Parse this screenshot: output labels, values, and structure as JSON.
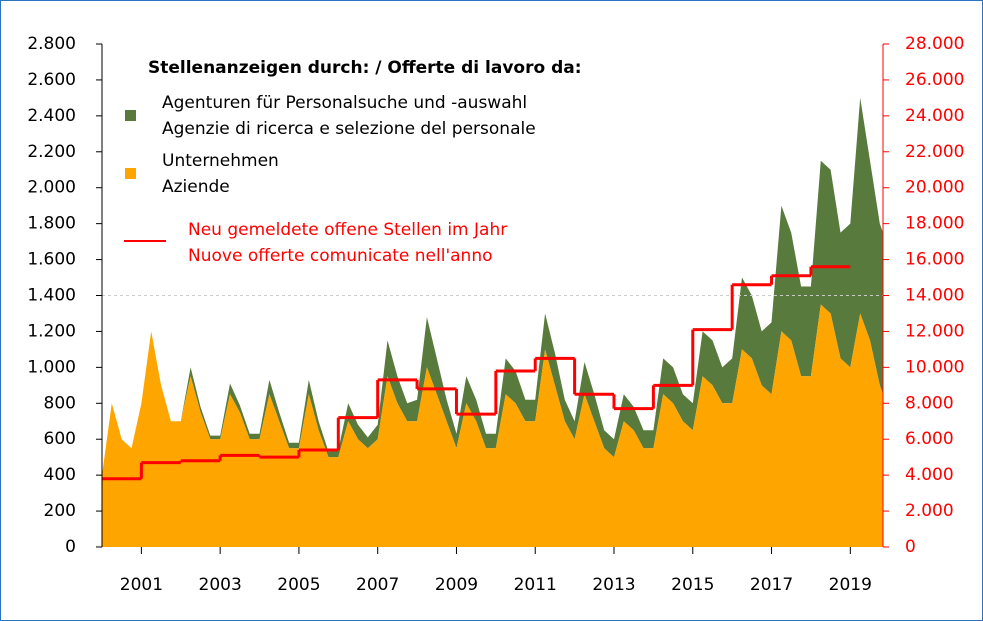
{
  "chart_data": {
    "type": "stacked_area",
    "legend_title": "Stellenanzeigen durch: / Offerte di lavoro da:",
    "x": [
      2000,
      2000.25,
      2000.5,
      2000.75,
      2001,
      2001.25,
      2001.5,
      2001.75,
      2002,
      2002.25,
      2002.5,
      2002.75,
      2003,
      2003.25,
      2003.5,
      2003.75,
      2004,
      2004.25,
      2004.5,
      2004.75,
      2005,
      2005.25,
      2005.5,
      2005.75,
      2006,
      2006.25,
      2006.5,
      2006.75,
      2007,
      2007.25,
      2007.5,
      2007.75,
      2008,
      2008.25,
      2008.5,
      2008.75,
      2009,
      2009.25,
      2009.5,
      2009.75,
      2010,
      2010.25,
      2010.5,
      2010.75,
      2011,
      2011.25,
      2011.5,
      2011.75,
      2012,
      2012.25,
      2012.5,
      2012.75,
      2013,
      2013.25,
      2013.5,
      2013.75,
      2014,
      2014.25,
      2014.5,
      2014.75,
      2015,
      2015.25,
      2015.5,
      2015.75,
      2016,
      2016.25,
      2016.5,
      2016.75,
      2017,
      2017.25,
      2017.5,
      2017.75,
      2018,
      2018.25,
      2018.5,
      2018.75,
      2019,
      2019.25,
      2019.5,
      2019.75,
      2019.83
    ],
    "series": [
      {
        "name": [
          "Unternehmen",
          "Aziende"
        ],
        "color": "#ffa500",
        "values": [
          400,
          800,
          600,
          550,
          800,
          1200,
          900,
          700,
          700,
          950,
          750,
          600,
          600,
          850,
          750,
          600,
          600,
          850,
          700,
          550,
          550,
          850,
          650,
          500,
          500,
          700,
          600,
          550,
          600,
          950,
          800,
          700,
          700,
          1000,
          850,
          700,
          550,
          800,
          700,
          550,
          550,
          850,
          800,
          700,
          700,
          1100,
          900,
          700,
          600,
          850,
          700,
          550,
          500,
          700,
          650,
          550,
          550,
          850,
          800,
          700,
          650,
          950,
          900,
          800,
          800,
          1100,
          1050,
          900,
          850,
          1200,
          1150,
          950,
          950,
          1350,
          1300,
          1050,
          1000,
          1300,
          1150,
          900,
          850
        ]
      },
      {
        "name": [
          "Agenturen für Personalsuche und -auswahl",
          "Agenzie di ricerca e selezione del personale"
        ],
        "color": "#587a3c",
        "values": [
          0,
          0,
          0,
          0,
          0,
          0,
          0,
          0,
          0,
          50,
          30,
          20,
          20,
          60,
          40,
          30,
          30,
          80,
          50,
          30,
          30,
          80,
          50,
          30,
          40,
          100,
          80,
          60,
          80,
          200,
          150,
          100,
          120,
          280,
          200,
          120,
          80,
          150,
          120,
          80,
          80,
          200,
          180,
          120,
          120,
          200,
          180,
          120,
          100,
          180,
          150,
          100,
          100,
          150,
          130,
          100,
          100,
          200,
          200,
          150,
          150,
          250,
          250,
          200,
          250,
          400,
          350,
          300,
          400,
          700,
          600,
          500,
          500,
          800,
          800,
          700,
          800,
          1200,
          1000,
          900,
          900
        ]
      }
    ],
    "step_series": {
      "name": [
        "Neu gemeldete offene Stellen im Jahr",
        "Nuove offerte comunicate nell'anno"
      ],
      "color": "#ff0000",
      "axis": "y2",
      "x": [
        2000,
        2001,
        2002,
        2003,
        2004,
        2005,
        2006,
        2007,
        2008,
        2009,
        2010,
        2011,
        2012,
        2013,
        2014,
        2015,
        2016,
        2017,
        2018
      ],
      "values": [
        3800,
        4700,
        4800,
        5100,
        5000,
        5400,
        7200,
        9300,
        8800,
        7400,
        9800,
        10500,
        8500,
        7700,
        9000,
        12100,
        14600,
        15100,
        15600
      ]
    },
    "xlim": [
      2000,
      2019.83
    ],
    "xticks": [
      2001,
      2003,
      2005,
      2007,
      2009,
      2011,
      2013,
      2015,
      2017,
      2019
    ],
    "ylim": [
      0,
      2800
    ],
    "yticks": [
      0,
      200,
      400,
      600,
      800,
      {
        "value": 1000,
        "label": "1.000"
      },
      {
        "value": 1200,
        "label": "1.200"
      },
      {
        "value": 1400,
        "label": "1.400"
      },
      {
        "value": 1600,
        "label": "1.600"
      },
      {
        "value": 1800,
        "label": "1.800"
      },
      {
        "value": 2000,
        "label": "2.000"
      },
      {
        "value": 2200,
        "label": "2.200"
      },
      {
        "value": 2400,
        "label": "2.400"
      },
      {
        "value": 2600,
        "label": "2.600"
      },
      {
        "value": 2800,
        "label": "2.800"
      }
    ],
    "y2lim": [
      0,
      28000
    ],
    "y2ticks": [
      0,
      {
        "value": 2000,
        "label": "2.000"
      },
      {
        "value": 4000,
        "label": "4.000"
      },
      {
        "value": 6000,
        "label": "6.000"
      },
      {
        "value": 8000,
        "label": "8.000"
      },
      {
        "value": 10000,
        "label": "10.000"
      },
      {
        "value": 12000,
        "label": "12.000"
      },
      {
        "value": 14000,
        "label": "14.000"
      },
      {
        "value": 16000,
        "label": "16.000"
      },
      {
        "value": 18000,
        "label": "18.000"
      },
      {
        "value": 20000,
        "label": "20.000"
      },
      {
        "value": 22000,
        "label": "22.000"
      },
      {
        "value": 24000,
        "label": "24.000"
      },
      {
        "value": 26000,
        "label": "26.000"
      },
      {
        "value": 28000,
        "label": "28.000"
      }
    ],
    "hline": 1400
  }
}
